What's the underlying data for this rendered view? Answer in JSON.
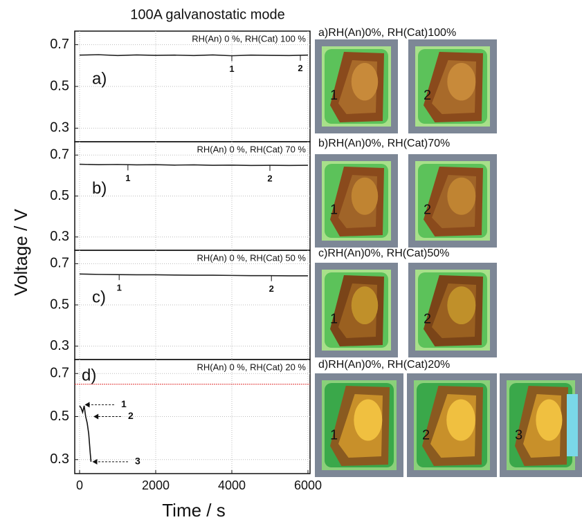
{
  "figure": {
    "title": "100A galvanostatic mode",
    "xlabel": "Time / s",
    "ylabel": "Voltage / V"
  },
  "chart_data": [
    {
      "type": "line",
      "panel": "a)",
      "annotation": "RH(An) 0 %, RH(Cat) 100 %",
      "color": "#222222",
      "x": [
        0,
        500,
        1000,
        1500,
        2000,
        2500,
        3000,
        3500,
        4000,
        4500,
        5000,
        5500,
        6000
      ],
      "values": [
        0.65,
        0.652,
        0.648,
        0.651,
        0.649,
        0.65,
        0.648,
        0.651,
        0.647,
        0.65,
        0.649,
        0.648,
        0.65
      ],
      "markers": [
        {
          "x": 4000,
          "label": "1"
        },
        {
          "x": 5800,
          "label": "2"
        }
      ],
      "xlim": [
        0,
        6000
      ],
      "xticks": [
        0,
        2000,
        4000,
        6000
      ],
      "ylim": [
        0.235,
        0.765
      ],
      "yticks": [
        0.3,
        0.5,
        0.7
      ],
      "grid": true
    },
    {
      "type": "line",
      "panel": "b)",
      "annotation": "RH(An) 0 %, RH(Cat) 70 %",
      "color": "#222222",
      "x": [
        0,
        500,
        1000,
        1500,
        2000,
        2500,
        3000,
        3500,
        4000,
        4500,
        5000,
        5500,
        6000
      ],
      "values": [
        0.655,
        0.653,
        0.654,
        0.652,
        0.653,
        0.651,
        0.652,
        0.65,
        0.651,
        0.649,
        0.65,
        0.649,
        0.65
      ],
      "markers": [
        {
          "x": 1270,
          "label": "1"
        },
        {
          "x": 5000,
          "label": "2"
        }
      ],
      "xlim": [
        0,
        6000
      ],
      "xticks": [
        0,
        2000,
        4000,
        6000
      ],
      "ylim": [
        0.235,
        0.765
      ],
      "yticks": [
        0.3,
        0.5,
        0.7
      ],
      "grid": true
    },
    {
      "type": "line",
      "panel": "c)",
      "annotation": "RH(An) 0 %, RH(Cat) 50 %",
      "color": "#222222",
      "x": [
        0,
        500,
        1000,
        1500,
        2000,
        2500,
        3000,
        3500,
        4000,
        4500,
        5000,
        5500,
        6000
      ],
      "values": [
        0.65,
        0.648,
        0.647,
        0.646,
        0.646,
        0.645,
        0.644,
        0.644,
        0.643,
        0.642,
        0.642,
        0.641,
        0.641
      ],
      "markers": [
        {
          "x": 1040,
          "label": "1"
        },
        {
          "x": 5040,
          "label": "2"
        }
      ],
      "xlim": [
        0,
        6000
      ],
      "xticks": [
        0,
        2000,
        4000,
        6000
      ],
      "ylim": [
        0.235,
        0.765
      ],
      "yticks": [
        0.3,
        0.5,
        0.7
      ],
      "grid": true
    },
    {
      "type": "line",
      "panel": "d)",
      "annotation": "RH(An) 0 %, RH(Cat) 20 %",
      "color": "#111111",
      "x": [
        0,
        40,
        80,
        120,
        160,
        200,
        240,
        280,
        300
      ],
      "values": [
        0.55,
        0.54,
        0.52,
        0.55,
        0.5,
        0.47,
        0.42,
        0.33,
        0.29
      ],
      "reference": {
        "value": 0.65,
        "color": "#e03030"
      },
      "arrows": [
        {
          "x": 100,
          "y": 0.555,
          "label": "1"
        },
        {
          "x": 330,
          "y": 0.5,
          "label": "2"
        },
        {
          "x": 300,
          "y": 0.29,
          "label": "3"
        }
      ],
      "xlim": [
        0,
        6000
      ],
      "xticks": [
        0,
        2000,
        4000,
        6000
      ],
      "ylim": [
        0.235,
        0.765
      ],
      "yticks": [
        0.3,
        0.5,
        0.7
      ],
      "grid": true
    }
  ],
  "maps": [
    {
      "title": "a)RH(An)0%, RH(Cat)100%",
      "labels": [
        "1",
        "2"
      ]
    },
    {
      "title": "b)RH(An)0%, RH(Cat)70%",
      "labels": [
        "1",
        "2"
      ]
    },
    {
      "title": "c)RH(An)0%, RH(Cat)50%",
      "labels": [
        "1",
        "2"
      ]
    },
    {
      "title": "d)RH(An)0%, RH(Cat)20%",
      "labels": [
        "1",
        "2",
        "3"
      ]
    }
  ]
}
